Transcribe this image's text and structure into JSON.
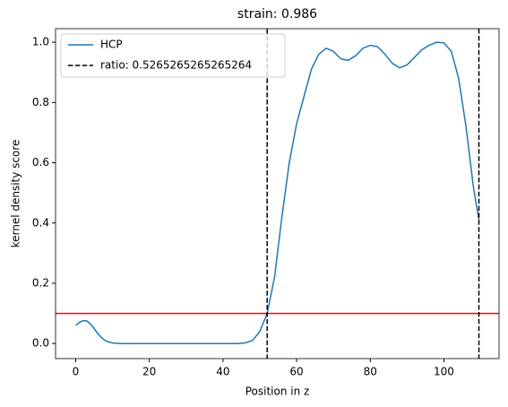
{
  "chart_data": {
    "type": "line",
    "title": "strain: 0.986",
    "xlabel": "Position in z",
    "ylabel": "kernel density score",
    "series": [
      {
        "name": "HCP",
        "color": "#1f77b4",
        "x": [
          0,
          1,
          2,
          3,
          4,
          5,
          6,
          7,
          8,
          9,
          10,
          12,
          44,
          46,
          48,
          50,
          52,
          54,
          56,
          58,
          60,
          62,
          64,
          66,
          68,
          70,
          72,
          74,
          76,
          78,
          80,
          82,
          84,
          86,
          88,
          90,
          92,
          94,
          96,
          98,
          100,
          102,
          104,
          106,
          108,
          109.5
        ],
        "values": [
          0.06,
          0.07,
          0.076,
          0.075,
          0.065,
          0.05,
          0.033,
          0.02,
          0.01,
          0.005,
          0.002,
          0,
          0,
          0.002,
          0.01,
          0.04,
          0.1,
          0.22,
          0.42,
          0.6,
          0.73,
          0.82,
          0.91,
          0.96,
          0.98,
          0.97,
          0.945,
          0.94,
          0.955,
          0.98,
          0.99,
          0.985,
          0.96,
          0.93,
          0.915,
          0.925,
          0.95,
          0.975,
          0.99,
          1.0,
          0.998,
          0.97,
          0.88,
          0.72,
          0.52,
          0.41
        ]
      }
    ],
    "vlines": {
      "name": "ratio: 0.5265265265265264",
      "color": "#000000",
      "values": [
        52,
        109.5
      ]
    },
    "hline": {
      "value": 0.1,
      "color": "#ff0000"
    },
    "xlim": [
      -5.47,
      114.97
    ],
    "ylim": [
      -0.05,
      1.045
    ],
    "xticks": [
      0,
      20,
      40,
      60,
      80,
      100
    ],
    "yticks": [
      {
        "value": 0,
        "label": "0.0"
      },
      0.2,
      0.4,
      0.6,
      0.8,
      {
        "value": 1,
        "label": "1.0"
      }
    ],
    "legend": "upper left"
  }
}
